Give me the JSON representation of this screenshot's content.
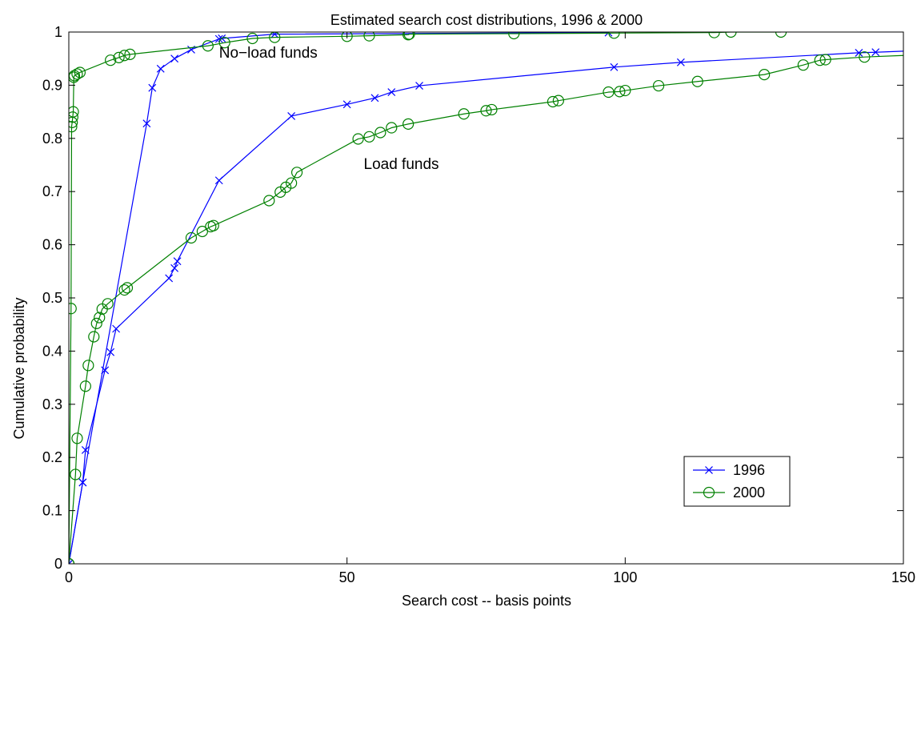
{
  "chart_data": {
    "type": "line",
    "title": "Estimated search cost distributions, 1996 & 2000",
    "xlabel": "Search cost -- basis points",
    "ylabel": "Cumulative probability",
    "xlim": [
      0,
      150
    ],
    "ylim": [
      0,
      1
    ],
    "xticks": [
      "0",
      "50",
      "100",
      "150"
    ],
    "yticks": [
      "0",
      "0.1",
      "0.2",
      "0.3",
      "0.4",
      "0.5",
      "0.6",
      "0.7",
      "0.8",
      "0.9",
      "1"
    ],
    "grid": false,
    "legend_position": "right",
    "annotations": [
      {
        "text": "No−load funds",
        "x": 27,
        "y": 0.962
      },
      {
        "text": "Load funds",
        "x": 53,
        "y": 0.753
      }
    ],
    "series": [
      {
        "name": "1996",
        "color": "#0000ff",
        "marker": "x",
        "curves": [
          {
            "label": "no-load",
            "x": [
              0,
              2.5,
              14,
              15,
              16.5,
              19,
              22,
              27,
              27.5,
              37,
              97
            ],
            "y": [
              0,
              0.153,
              0.828,
              0.895,
              0.931,
              0.95,
              0.967,
              0.987,
              0.988,
              0.996,
              0.999
            ]
          },
          {
            "label": "load",
            "x": [
              0,
              2.5,
              3,
              6.5,
              7.5,
              8.5,
              18,
              19,
              19.5,
              27,
              40,
              50,
              55,
              58,
              63,
              98,
              110,
              142,
              145,
              150
            ],
            "y": [
              0,
              0.153,
              0.214,
              0.364,
              0.398,
              0.442,
              0.537,
              0.556,
              0.569,
              0.721,
              0.842,
              0.864,
              0.876,
              0.887,
              0.899,
              0.934,
              0.943,
              0.961,
              0.962,
              0.964
            ]
          }
        ]
      },
      {
        "name": "2000",
        "color": "#008000",
        "marker": "o",
        "curves": [
          {
            "label": "no-load",
            "x": [
              0,
              0.4,
              0.5,
              0.6,
              0.7,
              0.8,
              0.9,
              1.0,
              1.5,
              2.0,
              7.5,
              9.0,
              10.0,
              11.0,
              25.0,
              28.0,
              33.0,
              37.0,
              50.0,
              54.0,
              61.0,
              61.2,
              80.0,
              98.0,
              116.0,
              119.0,
              128.0
            ],
            "y": [
              0,
              0.48,
              0.822,
              0.83,
              0.84,
              0.85,
              0.915,
              0.918,
              0.921,
              0.924,
              0.947,
              0.952,
              0.956,
              0.958,
              0.974,
              0.98,
              0.988,
              0.99,
              0.992,
              0.993,
              0.995,
              0.996,
              0.997,
              0.998,
              0.999,
              1.0,
              1.0
            ]
          },
          {
            "label": "load",
            "x": [
              0,
              1.2,
              1.5,
              3.0,
              3.5,
              4.5,
              5.0,
              5.5,
              6.0,
              7.0,
              10.0,
              10.5,
              22.0,
              24.0,
              25.5,
              26.0,
              36.0,
              38.0,
              39.0,
              40.0,
              41.0,
              52.0,
              54.0,
              56.0,
              58.0,
              61.0,
              71.0,
              75.0,
              76.0,
              87.0,
              88.0,
              97.0,
              99.0,
              100.0,
              106.0,
              113.0,
              125.0,
              132.0,
              135.0,
              136.0,
              143.0,
              150.0
            ],
            "y": [
              0,
              0.168,
              0.236,
              0.334,
              0.373,
              0.427,
              0.452,
              0.463,
              0.479,
              0.489,
              0.515,
              0.519,
              0.613,
              0.625,
              0.634,
              0.636,
              0.683,
              0.699,
              0.708,
              0.716,
              0.736,
              0.799,
              0.803,
              0.811,
              0.82,
              0.827,
              0.846,
              0.852,
              0.854,
              0.869,
              0.871,
              0.887,
              0.888,
              0.89,
              0.899,
              0.907,
              0.92,
              0.938,
              0.947,
              0.948,
              0.953,
              0.956
            ]
          }
        ]
      }
    ]
  }
}
